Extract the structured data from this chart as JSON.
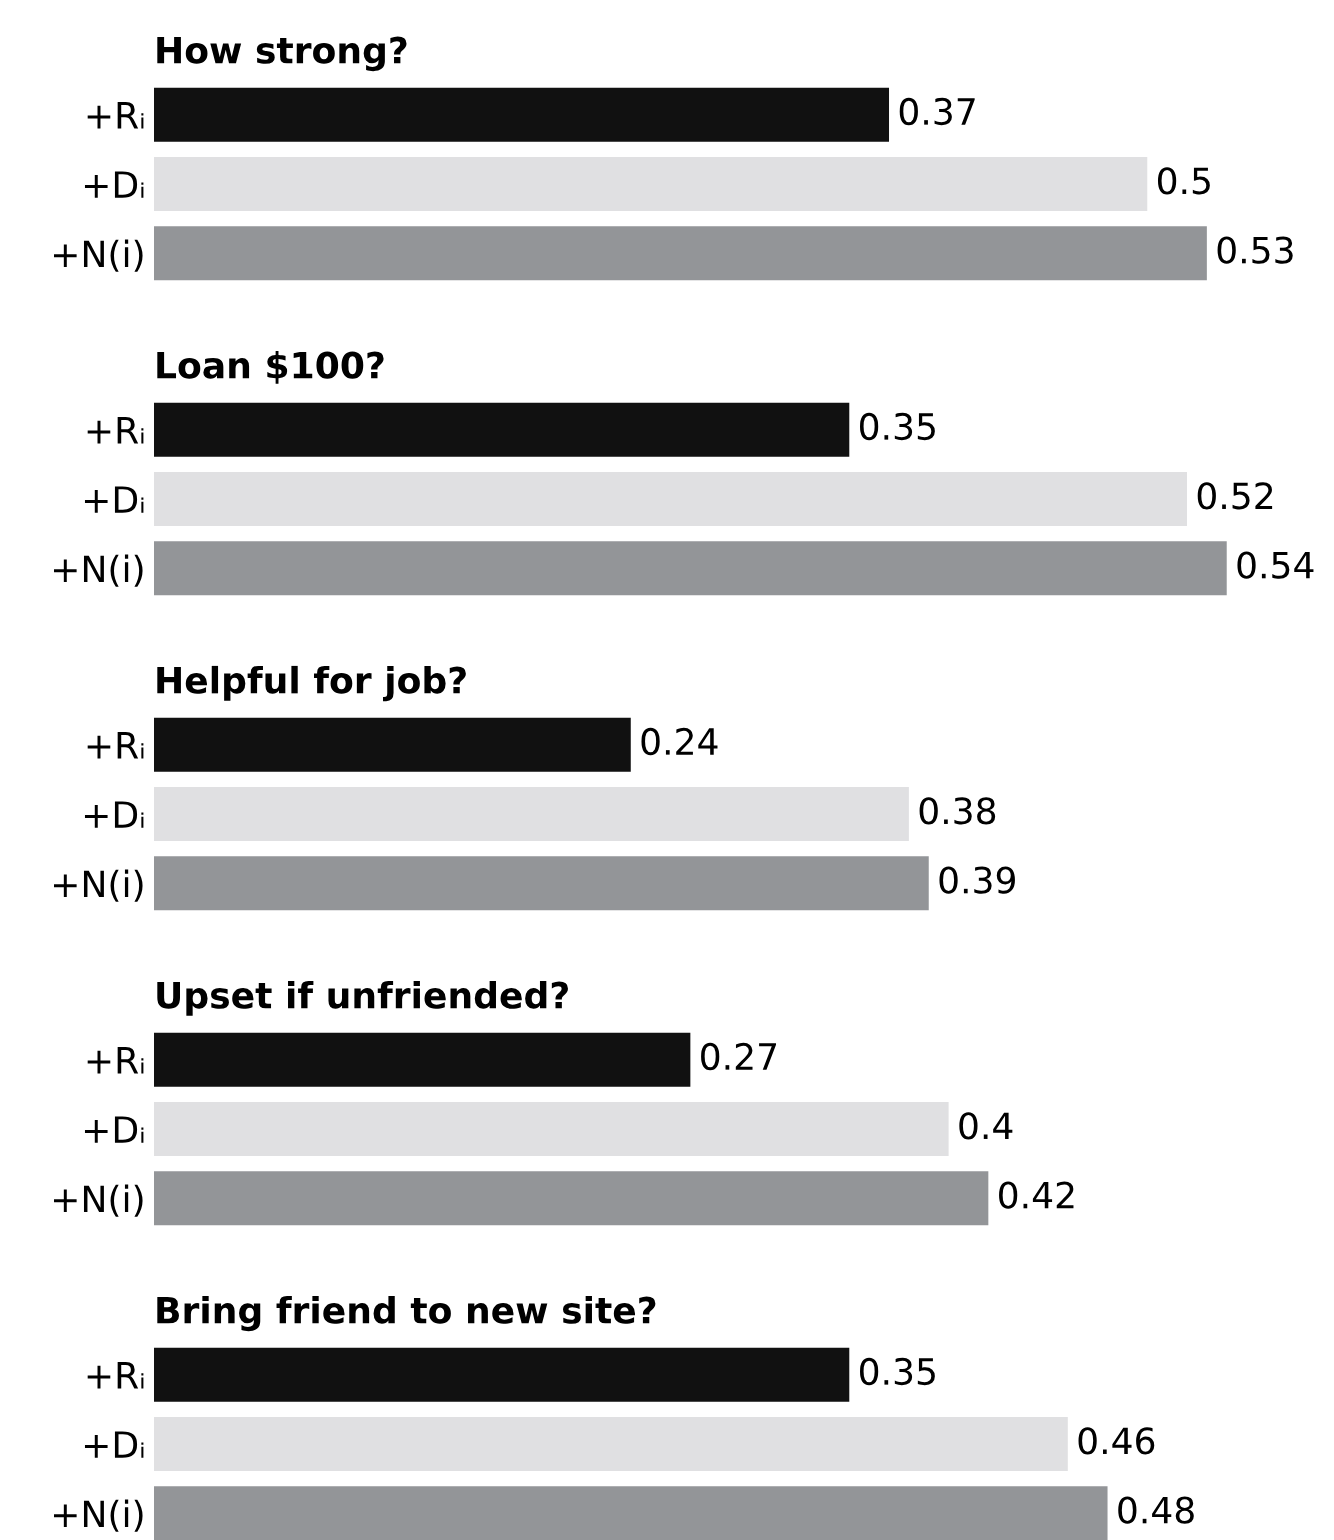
{
  "chart_data": [
    {
      "type": "bar",
      "orientation": "horizontal",
      "title": "How strong?",
      "categories": [
        "+Rᵢ",
        "+Dᵢ",
        "+N(i)"
      ],
      "values": [
        0.37,
        0.5,
        0.53
      ],
      "colors": [
        "#111111",
        "#e0e0e2",
        "#939598"
      ],
      "data_labels": true
    },
    {
      "type": "bar",
      "orientation": "horizontal",
      "title": "Loan $100?",
      "categories": [
        "+Rᵢ",
        "+Dᵢ",
        "+N(i)"
      ],
      "values": [
        0.35,
        0.52,
        0.54
      ],
      "colors": [
        "#111111",
        "#e0e0e2",
        "#939598"
      ],
      "data_labels": true
    },
    {
      "type": "bar",
      "orientation": "horizontal",
      "title": "Helpful for job?",
      "categories": [
        "+Rᵢ",
        "+Dᵢ",
        "+N(i)"
      ],
      "values": [
        0.24,
        0.38,
        0.39
      ],
      "colors": [
        "#111111",
        "#e0e0e2",
        "#939598"
      ],
      "data_labels": true
    },
    {
      "type": "bar",
      "orientation": "horizontal",
      "title": "Upset if unfriended?",
      "categories": [
        "+Rᵢ",
        "+Dᵢ",
        "+N(i)"
      ],
      "values": [
        0.27,
        0.4,
        0.42
      ],
      "colors": [
        "#111111",
        "#e0e0e2",
        "#939598"
      ],
      "data_labels": true
    },
    {
      "type": "bar",
      "orientation": "horizontal",
      "title": "Bring friend to new site?",
      "categories": [
        "+Rᵢ",
        "+Dᵢ",
        "+N(i)"
      ],
      "values": [
        0.35,
        0.46,
        0.48
      ],
      "colors": [
        "#111111",
        "#e0e0e2",
        "#939598"
      ],
      "data_labels": true
    }
  ]
}
